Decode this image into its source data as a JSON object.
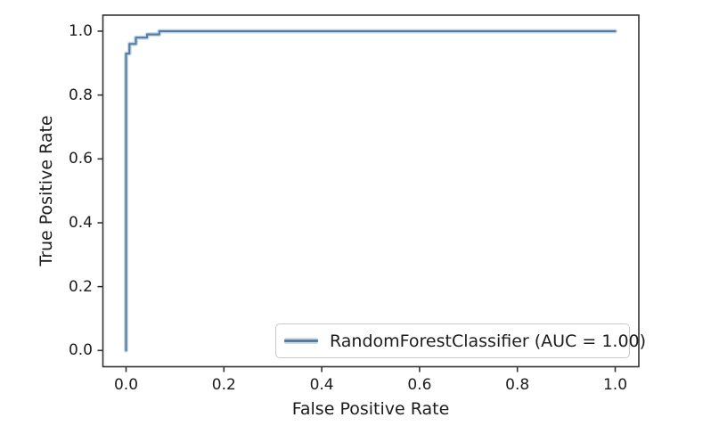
{
  "figure": {
    "background": "#ffffff"
  },
  "chart_data": {
    "type": "line",
    "title": "",
    "xlabel": "False Positive Rate",
    "ylabel": "True Positive Rate",
    "xlim": [
      -0.05,
      1.05
    ],
    "ylim": [
      -0.05,
      1.05
    ],
    "grid": false,
    "x_ticks": {
      "values": [
        0,
        0.2,
        0.4,
        0.6,
        0.8,
        1.0
      ],
      "labels": [
        "0.0",
        "0.2",
        "0.4",
        "0.6",
        "0.8",
        "1.0"
      ]
    },
    "y_ticks": {
      "values": [
        0,
        0.2,
        0.4,
        0.6,
        0.8,
        1.0
      ],
      "labels": [
        "0.0",
        "0.2",
        "0.4",
        "0.6",
        "0.8",
        "1.0"
      ]
    },
    "legend": {
      "position": "lower right",
      "entries": [
        "RandomForestClassifier (AUC = 1.00)"
      ]
    },
    "series": [
      {
        "name": "RandomForestClassifier (AUC = 1.00)",
        "auc": 1.0,
        "color": "#567d9f",
        "halo_color": "#cadded",
        "fpr": [
          0,
          0,
          0.007,
          0.007,
          0.02,
          0.02,
          0.043,
          0.043,
          0.068,
          0.068,
          1.0
        ],
        "tpr": [
          0,
          0.93,
          0.93,
          0.96,
          0.96,
          0.98,
          0.98,
          0.99,
          0.99,
          1.0,
          1.0
        ]
      }
    ],
    "colors": {
      "spine": "#333333",
      "text": "#1c1c1c",
      "legend_border": "#c9c9c9"
    }
  }
}
